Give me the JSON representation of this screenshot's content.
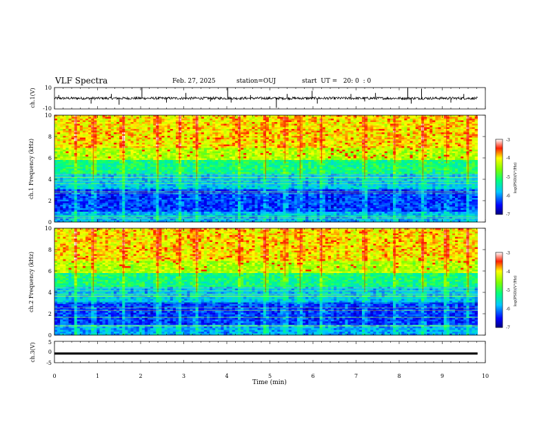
{
  "header": {
    "title": "VLF Spectra",
    "date": "Feb. 27, 2025",
    "station": "station=OUJ",
    "start": "start  UT =   20: 0  : 0"
  },
  "chart_data": [
    {
      "type": "line",
      "name": "ch1-waveform",
      "ylabel": "ch.1(V)",
      "ylim": [
        -10,
        10
      ],
      "yticks": [
        "10",
        "-10"
      ],
      "xlim": [
        0,
        10
      ],
      "baseline": 0,
      "noise_amplitude": 1.2,
      "spikes": [
        {
          "x": 0.1,
          "y": 3
        },
        {
          "x": 0.85,
          "y": -5
        },
        {
          "x": 1.32,
          "y": 4
        },
        {
          "x": 1.5,
          "y": -6
        },
        {
          "x": 2.03,
          "y": 10
        },
        {
          "x": 2.6,
          "y": -4
        },
        {
          "x": 3.05,
          "y": 5
        },
        {
          "x": 3.62,
          "y": -3
        },
        {
          "x": 4.02,
          "y": 10
        },
        {
          "x": 4.1,
          "y": -4
        },
        {
          "x": 4.55,
          "y": 3
        },
        {
          "x": 5.15,
          "y": -9
        },
        {
          "x": 5.4,
          "y": 4
        },
        {
          "x": 5.98,
          "y": 7
        },
        {
          "x": 6.1,
          "y": -5
        },
        {
          "x": 6.88,
          "y": 4
        },
        {
          "x": 7.2,
          "y": -3
        },
        {
          "x": 7.45,
          "y": 5
        },
        {
          "x": 8.2,
          "y": 10
        },
        {
          "x": 8.28,
          "y": -5
        },
        {
          "x": 8.52,
          "y": 9
        },
        {
          "x": 9.2,
          "y": -4
        },
        {
          "x": 9.5,
          "y": 4
        }
      ]
    },
    {
      "type": "heatmap",
      "name": "ch1-spectrogram",
      "ylabel": "ch.1 Frequency (kHz)",
      "xlim": [
        0,
        10
      ],
      "data_end": 9.82,
      "ylim": [
        0,
        10
      ],
      "yticks": [
        "0",
        "2",
        "4",
        "6",
        "8",
        "10"
      ],
      "colorbar": {
        "label": "log(PSD)(V²/Hz)",
        "ticks": [
          "-3",
          "-4",
          "-5",
          "-6",
          "-7"
        ],
        "range": [
          -7,
          -3
        ]
      },
      "bursts": [
        0.5,
        0.9,
        1.6,
        2.4,
        2.9,
        3.3,
        4.3,
        4.9,
        5.35,
        5.7,
        6.2,
        7.2,
        7.9,
        8.55,
        9.1,
        9.6
      ]
    },
    {
      "type": "heatmap",
      "name": "ch2-spectrogram",
      "ylabel": "ch.2 Frequency (kHz)",
      "xlim": [
        0,
        10
      ],
      "data_end": 9.82,
      "ylim": [
        0,
        10
      ],
      "yticks": [
        "0",
        "2",
        "4",
        "6",
        "8",
        "10"
      ],
      "colorbar": {
        "label": "log(PSD)(V²/Hz)",
        "ticks": [
          "-3",
          "-4",
          "-5",
          "-6",
          "-7"
        ],
        "range": [
          -7,
          -3
        ]
      },
      "bursts": [
        0.5,
        0.9,
        1.6,
        2.4,
        2.9,
        3.3,
        4.3,
        4.9,
        5.35,
        5.7,
        6.2,
        7.2,
        7.9,
        8.55,
        9.1,
        9.6
      ]
    },
    {
      "type": "line",
      "name": "ch3-waveform",
      "ylabel": "ch.3(V)",
      "ylim": [
        -5,
        5
      ],
      "yticks": [
        "5",
        "0",
        "-5"
      ],
      "xlim": [
        0,
        10
      ],
      "x_end": 9.82,
      "y": -0.8,
      "xlabel": "Time (min)",
      "xticks": [
        "0",
        "1",
        "2",
        "3",
        "4",
        "5",
        "6",
        "7",
        "8",
        "9",
        "10"
      ]
    }
  ]
}
